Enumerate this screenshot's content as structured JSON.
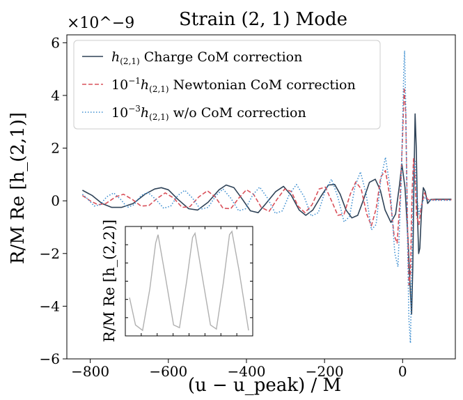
{
  "chart_data": {
    "type": "line",
    "title": "Strain (2, 1) Mode",
    "xlabel": "(u − u_peak) / M",
    "ylabel": "R/M Re [h_(2,1)]",
    "y_multiplier": "×10^−9",
    "xlim": [
      -860,
      135
    ],
    "ylim": [
      -6,
      6.3
    ],
    "xticks": [
      -800,
      -600,
      -400,
      -200,
      0
    ],
    "yticks": [
      -6,
      -4,
      -2,
      0,
      2,
      4,
      6
    ],
    "legend_position": "upper-left",
    "grid": false,
    "series": [
      {
        "name": "h_(2,1) Charge CoM correction",
        "label_main": "h",
        "label_sub": "(2,1)",
        "label_text": "Charge CoM correction",
        "color": "#2e4257",
        "style": "solid",
        "points": [
          [
            -820,
            0.4
          ],
          [
            -795,
            0.2
          ],
          [
            -770,
            -0.1
          ],
          [
            -745,
            -0.25
          ],
          [
            -720,
            -0.25
          ],
          [
            -690,
            -0.1
          ],
          [
            -660,
            0.25
          ],
          [
            -635,
            0.45
          ],
          [
            -618,
            0.5
          ],
          [
            -600,
            0.42
          ],
          [
            -575,
            0.05
          ],
          [
            -548,
            -0.3
          ],
          [
            -525,
            -0.35
          ],
          [
            -498,
            -0.05
          ],
          [
            -470,
            0.42
          ],
          [
            -452,
            0.6
          ],
          [
            -432,
            0.5
          ],
          [
            -410,
            0.05
          ],
          [
            -390,
            -0.38
          ],
          [
            -370,
            -0.45
          ],
          [
            -350,
            -0.1
          ],
          [
            -325,
            0.35
          ],
          [
            -305,
            0.55
          ],
          [
            -285,
            0.2
          ],
          [
            -265,
            -0.35
          ],
          [
            -248,
            -0.55
          ],
          [
            -230,
            -0.35
          ],
          [
            -210,
            0.15
          ],
          [
            -190,
            0.6
          ],
          [
            -174,
            0.62
          ],
          [
            -160,
            0.25
          ],
          [
            -145,
            -0.35
          ],
          [
            -130,
            -0.65
          ],
          [
            -115,
            -0.55
          ],
          [
            -100,
            0.05
          ],
          [
            -85,
            0.7
          ],
          [
            -70,
            0.82
          ],
          [
            -57,
            0.4
          ],
          [
            -45,
            -0.35
          ],
          [
            -30,
            -0.82
          ],
          [
            -18,
            -0.5
          ],
          [
            -8,
            0.6
          ],
          [
            -2,
            1.4
          ],
          [
            6,
            0.5
          ],
          [
            14,
            -1.5
          ],
          [
            20,
            -3.5
          ],
          [
            23,
            -4.3
          ],
          [
            26,
            -2.5
          ],
          [
            29,
            0.8
          ],
          [
            32,
            3.3
          ],
          [
            35,
            2.0
          ],
          [
            38,
            -0.5
          ],
          [
            41,
            -2.0
          ],
          [
            44,
            -1.8
          ],
          [
            48,
            -0.5
          ],
          [
            53,
            0.5
          ],
          [
            58,
            0.35
          ],
          [
            64,
            -0.1
          ],
          [
            72,
            0.05
          ],
          [
            85,
            0.06
          ],
          [
            125,
            0.06
          ]
        ]
      },
      {
        "name": "10^−1 h_(2,1) Newtonian CoM correction",
        "label_prefix": "10",
        "label_exp": "−1",
        "label_main": "h",
        "label_sub": "(2,1)",
        "label_text": "Newtonian CoM correction",
        "color": "#d9505a",
        "style": "dashed",
        "points": [
          [
            -820,
            0.2
          ],
          [
            -800,
            0.0
          ],
          [
            -780,
            -0.15
          ],
          [
            -760,
            -0.1
          ],
          [
            -735,
            0.15
          ],
          [
            -715,
            0.25
          ],
          [
            -692,
            0.05
          ],
          [
            -670,
            -0.2
          ],
          [
            -650,
            -0.18
          ],
          [
            -628,
            0.1
          ],
          [
            -608,
            0.3
          ],
          [
            -586,
            0.1
          ],
          [
            -565,
            -0.25
          ],
          [
            -545,
            -0.22
          ],
          [
            -522,
            0.15
          ],
          [
            -500,
            0.38
          ],
          [
            -480,
            0.15
          ],
          [
            -460,
            -0.28
          ],
          [
            -440,
            -0.3
          ],
          [
            -420,
            0.1
          ],
          [
            -400,
            0.42
          ],
          [
            -382,
            0.25
          ],
          [
            -362,
            -0.25
          ],
          [
            -342,
            -0.4
          ],
          [
            -322,
            0.05
          ],
          [
            -302,
            0.45
          ],
          [
            -285,
            0.35
          ],
          [
            -268,
            -0.2
          ],
          [
            -250,
            -0.45
          ],
          [
            -232,
            -0.15
          ],
          [
            -214,
            0.45
          ],
          [
            -198,
            0.52
          ],
          [
            -182,
            0.0
          ],
          [
            -166,
            -0.55
          ],
          [
            -150,
            -0.5
          ],
          [
            -134,
            0.25
          ],
          [
            -120,
            0.72
          ],
          [
            -106,
            0.45
          ],
          [
            -92,
            -0.5
          ],
          [
            -80,
            -0.95
          ],
          [
            -68,
            -0.3
          ],
          [
            -56,
            0.9
          ],
          [
            -44,
            1.15
          ],
          [
            -32,
            0.1
          ],
          [
            -22,
            -1.3
          ],
          [
            -14,
            -1.6
          ],
          [
            -6,
            0.2
          ],
          [
            0,
            2.5
          ],
          [
            4,
            4.3
          ],
          [
            8,
            3.3
          ],
          [
            12,
            -0.5
          ],
          [
            16,
            -3.2
          ],
          [
            20,
            -2.8
          ],
          [
            24,
            0.3
          ],
          [
            28,
            1.6
          ],
          [
            32,
            0.8
          ],
          [
            36,
            -0.6
          ],
          [
            42,
            -0.9
          ],
          [
            48,
            -0.2
          ],
          [
            56,
            0.3
          ],
          [
            64,
            0.05
          ],
          [
            75,
            0.04
          ],
          [
            125,
            0.04
          ]
        ]
      },
      {
        "name": "10^−3 h_(2,1) w/o CoM correction",
        "label_prefix": "10",
        "label_exp": "−3",
        "label_main": "h",
        "label_sub": "(2,1)",
        "label_text": "w/o CoM correction",
        "color": "#3d8ed0",
        "style": "dotted",
        "points": [
          [
            -820,
            0.25
          ],
          [
            -805,
            0.05
          ],
          [
            -790,
            -0.2
          ],
          [
            -775,
            -0.15
          ],
          [
            -758,
            0.15
          ],
          [
            -740,
            0.3
          ],
          [
            -722,
            0.05
          ],
          [
            -705,
            -0.25
          ],
          [
            -688,
            -0.15
          ],
          [
            -670,
            0.2
          ],
          [
            -652,
            0.32
          ],
          [
            -632,
            0.05
          ],
          [
            -612,
            -0.28
          ],
          [
            -594,
            -0.2
          ],
          [
            -576,
            0.2
          ],
          [
            -558,
            0.4
          ],
          [
            -538,
            0.1
          ],
          [
            -518,
            -0.32
          ],
          [
            -498,
            -0.25
          ],
          [
            -478,
            0.2
          ],
          [
            -460,
            0.45
          ],
          [
            -440,
            0.1
          ],
          [
            -420,
            -0.38
          ],
          [
            -402,
            -0.3
          ],
          [
            -384,
            0.22
          ],
          [
            -366,
            0.52
          ],
          [
            -346,
            0.1
          ],
          [
            -326,
            -0.48
          ],
          [
            -308,
            -0.38
          ],
          [
            -290,
            0.25
          ],
          [
            -272,
            0.62
          ],
          [
            -252,
            0.15
          ],
          [
            -234,
            -0.58
          ],
          [
            -216,
            -0.45
          ],
          [
            -198,
            0.4
          ],
          [
            -182,
            0.82
          ],
          [
            -166,
            0.15
          ],
          [
            -150,
            -0.8
          ],
          [
            -136,
            -0.6
          ],
          [
            -122,
            0.55
          ],
          [
            -108,
            1.1
          ],
          [
            -94,
            0.3
          ],
          [
            -80,
            -1.1
          ],
          [
            -68,
            -0.9
          ],
          [
            -56,
            0.8
          ],
          [
            -44,
            1.65
          ],
          [
            -32,
            0.5
          ],
          [
            -20,
            -2.0
          ],
          [
            -12,
            -2.5
          ],
          [
            -4,
            0.5
          ],
          [
            0,
            3.0
          ],
          [
            3,
            5.0
          ],
          [
            5,
            5.7
          ],
          [
            8,
            3.5
          ],
          [
            12,
            -1.0
          ],
          [
            16,
            -4.5
          ],
          [
            20,
            -5.4
          ],
          [
            24,
            -2.0
          ],
          [
            28,
            1.2
          ],
          [
            32,
            1.5
          ],
          [
            36,
            0.2
          ],
          [
            42,
            -0.5
          ],
          [
            48,
            -0.2
          ],
          [
            56,
            0.15
          ],
          [
            65,
            0.02
          ],
          [
            125,
            0.02
          ]
        ]
      }
    ],
    "inset": {
      "ylabel": "R/M Re [h_(2,2)]",
      "color": "#b0b0b0",
      "points": [
        [
          0,
          -3.8
        ],
        [
          0.05,
          -4.8
        ],
        [
          0.11,
          -5.0
        ],
        [
          0.17,
          -3.5
        ],
        [
          0.22,
          -1.8
        ],
        [
          0.24,
          -1.5
        ],
        [
          0.3,
          -3.0
        ],
        [
          0.37,
          -4.8
        ],
        [
          0.42,
          -4.9
        ],
        [
          0.48,
          -3.2
        ],
        [
          0.53,
          -1.6
        ],
        [
          0.55,
          -1.45
        ],
        [
          0.61,
          -3.0
        ],
        [
          0.68,
          -4.8
        ],
        [
          0.73,
          -4.95
        ],
        [
          0.79,
          -3.2
        ],
        [
          0.84,
          -1.5
        ],
        [
          0.86,
          -1.38
        ],
        [
          0.92,
          -2.8
        ],
        [
          1.0,
          -5.0
        ]
      ]
    }
  }
}
